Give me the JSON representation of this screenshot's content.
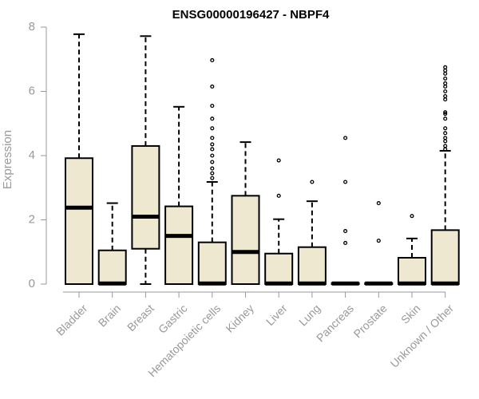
{
  "chart_data": {
    "type": "boxplot",
    "title": "ENSG00000196427 - NBPF4",
    "xlabel": "",
    "ylabel": "Expression",
    "ylim": [
      0,
      8
    ],
    "yticks": [
      0,
      2,
      4,
      6,
      8
    ],
    "grid": false,
    "box_color": "#efe8d0",
    "categories": [
      "Bladder",
      "Brain",
      "Breast",
      "Gastric",
      "Hematopoietic cells",
      "Kidney",
      "Liver",
      "Lung",
      "Pancreas",
      "Prostate",
      "Skin",
      "Unknown / Other"
    ],
    "boxes": [
      {
        "min": 0,
        "q1": 0,
        "median": 2.38,
        "q3": 3.92,
        "max": 7.78,
        "outliers": []
      },
      {
        "min": 0,
        "q1": 0,
        "median": 0.02,
        "q3": 1.05,
        "max": 2.52,
        "outliers": []
      },
      {
        "min": 0,
        "q1": 1.1,
        "median": 2.1,
        "q3": 4.3,
        "max": 7.72,
        "outliers": []
      },
      {
        "min": 0,
        "q1": 0,
        "median": 1.5,
        "q3": 2.42,
        "max": 5.52,
        "outliers": []
      },
      {
        "min": 0,
        "q1": 0,
        "median": 0.02,
        "q3": 1.3,
        "max": 3.18,
        "outliers": [
          3.3,
          3.45,
          3.6,
          3.8,
          4.0,
          4.2,
          4.35,
          4.55,
          4.85,
          5.15,
          5.55,
          6.15,
          6.97
        ]
      },
      {
        "min": 0,
        "q1": 0,
        "median": 1.0,
        "q3": 2.75,
        "max": 4.42,
        "outliers": []
      },
      {
        "min": 0,
        "q1": 0,
        "median": 0.02,
        "q3": 0.95,
        "max": 2.02,
        "outliers": [
          2.75,
          3.85
        ]
      },
      {
        "min": 0,
        "q1": 0,
        "median": 0.02,
        "q3": 1.15,
        "max": 2.58,
        "outliers": [
          3.18
        ]
      },
      {
        "min": 0,
        "q1": 0,
        "median": 0.02,
        "q3": 0.03,
        "max": 0.03,
        "outliers": [
          1.28,
          1.65,
          3.18,
          4.55
        ]
      },
      {
        "min": 0,
        "q1": 0,
        "median": 0.02,
        "q3": 0.03,
        "max": 0.03,
        "outliers": [
          1.35,
          2.52
        ]
      },
      {
        "min": 0,
        "q1": 0,
        "median": 0.02,
        "q3": 0.82,
        "max": 1.42,
        "outliers": [
          2.12
        ]
      },
      {
        "min": 0,
        "q1": 0,
        "median": 0.02,
        "q3": 1.68,
        "max": 4.15,
        "outliers": [
          4.2,
          4.3,
          4.45,
          4.55,
          4.7,
          4.85,
          5.15,
          5.3,
          5.35,
          5.75,
          5.85,
          6.0,
          6.15,
          6.25,
          6.4,
          6.55,
          6.65,
          6.75
        ]
      }
    ]
  }
}
